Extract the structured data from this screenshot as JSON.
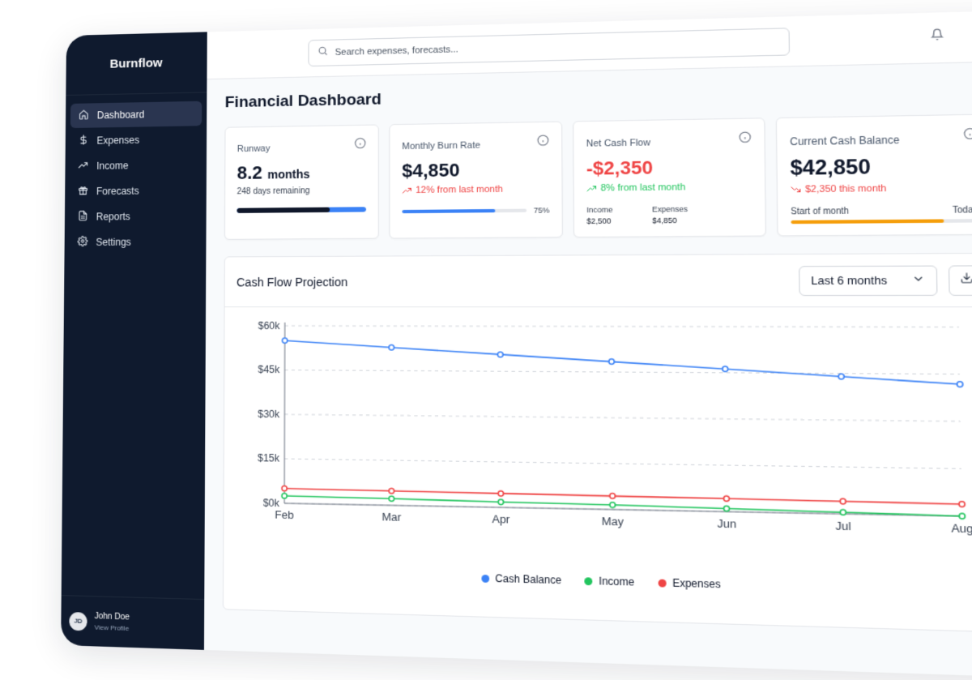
{
  "app": {
    "brand": "Burnflow"
  },
  "sidebar": {
    "items": [
      {
        "label": "Dashboard",
        "icon": "home-icon",
        "active": true
      },
      {
        "label": "Expenses",
        "icon": "dollar-icon"
      },
      {
        "label": "Income",
        "icon": "trending-up-icon"
      },
      {
        "label": "Forecasts",
        "icon": "gift-icon"
      },
      {
        "label": "Reports",
        "icon": "file-text-icon"
      },
      {
        "label": "Settings",
        "icon": "gear-icon"
      }
    ],
    "profile": {
      "initials": "JD",
      "name": "John Doe",
      "link": "View Profile"
    }
  },
  "topbar": {
    "search_placeholder": "Search expenses, forecasts..."
  },
  "page": {
    "title": "Financial Dashboard"
  },
  "cards": {
    "runway": {
      "label": "Runway",
      "value": "8.2",
      "unit": "months",
      "sub": "248 days remaining",
      "progress": 0.72
    },
    "burn": {
      "label": "Monthly Burn Rate",
      "value": "$4,850",
      "trend": "12% from last month",
      "progress": 0.75,
      "progress_label": "75%"
    },
    "netflow": {
      "label": "Net Cash Flow",
      "value": "-$2,350",
      "trend": "8% from last month",
      "income_label": "Income",
      "income_value": "$2,500",
      "expenses_label": "Expenses",
      "expenses_value": "$4,850"
    },
    "balance": {
      "label": "Current Cash Balance",
      "value": "$42,850",
      "trend": "$2,350 this month",
      "start_label": "Start of month",
      "end_label": "Today",
      "progress": 0.82
    }
  },
  "colors": {
    "blue": "#3b82f6",
    "green": "#22c55e",
    "red": "#ef4444",
    "orange": "#f59e0b",
    "navy": "#0f1a2e"
  },
  "chart_panel": {
    "title": "Cash Flow Projection",
    "range": "Last 6 months"
  },
  "chart_data": {
    "type": "line",
    "x": [
      "Feb",
      "Mar",
      "Apr",
      "May",
      "Jun",
      "Jul",
      "Aug"
    ],
    "ylim": [
      0,
      60000
    ],
    "yticks": [
      "$0k",
      "$15k",
      "$30k",
      "$45k",
      "$60k"
    ],
    "series": [
      {
        "name": "Cash Balance",
        "color": "#3b82f6",
        "values": [
          55000,
          52800,
          50600,
          48400,
          46200,
          44000,
          41800
        ]
      },
      {
        "name": "Income",
        "color": "#22c55e",
        "values": [
          2500,
          2200,
          1800,
          1500,
          1000,
          500,
          0
        ]
      },
      {
        "name": "Expenses",
        "color": "#ef4444",
        "values": [
          5000,
          4800,
          4600,
          4400,
          4200,
          4000,
          3800
        ]
      }
    ],
    "grid": true,
    "legend": "bottom"
  }
}
